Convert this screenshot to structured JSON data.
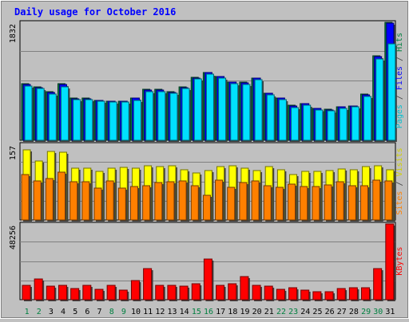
{
  "chart_data": {
    "type": "bar",
    "title": "Daily usage for October 2016",
    "categories": [
      "1",
      "2",
      "3",
      "4",
      "5",
      "6",
      "7",
      "8",
      "9",
      "10",
      "11",
      "12",
      "13",
      "14",
      "15",
      "16",
      "17",
      "18",
      "19",
      "20",
      "21",
      "22",
      "23",
      "24",
      "25",
      "26",
      "27",
      "28",
      "29",
      "30",
      "31"
    ],
    "weekend_days": [
      "1",
      "2",
      "8",
      "9",
      "15",
      "16",
      "22",
      "23",
      "29",
      "30"
    ],
    "panels": [
      {
        "name": "hits-pages-files",
        "ymax_label": "1832",
        "ylim": [
          0,
          1832
        ],
        "series": [
          {
            "name": "Hits",
            "color": "#008040",
            "values": [
              876,
              826,
              749,
              876,
              656,
              656,
              622,
              612,
              606,
              660,
              790,
              791,
              756,
              833,
              976,
              1057,
              993,
              904,
              904,
              970,
              736,
              660,
              539,
              574,
              501,
              481,
              525,
              534,
              715,
              1315,
              1832
            ]
          },
          {
            "name": "Files",
            "color": "#0000ff",
            "values": [
              868,
              820,
              743,
              867,
              648,
              648,
              617,
              605,
              602,
              652,
              780,
              780,
              747,
              823,
              970,
              1050,
              985,
              898,
              896,
              962,
              728,
              653,
              531,
              568,
              496,
              474,
              517,
              528,
              707,
              1304,
              1817
            ]
          },
          {
            "name": "Pages",
            "color": "#00e0ff",
            "values": [
              845,
              805,
              722,
              833,
              634,
              634,
              603,
              589,
              592,
              624,
              755,
              755,
              725,
              799,
              952,
              1031,
              963,
              873,
              866,
              945,
              702,
              629,
              505,
              547,
              474,
              457,
              494,
              517,
              677,
              1260,
              1502
            ]
          }
        ]
      },
      {
        "name": "visits-sites",
        "ymax_label": "157",
        "ylim": [
          0,
          157
        ],
        "series": [
          {
            "name": "Visits",
            "color": "#ffff00",
            "values": [
              146,
              122,
              142,
              141,
              108,
              108,
              101,
              108,
              109,
              108,
              112,
              110,
              112,
              104,
              97,
              102,
              110,
              112,
              108,
              103,
              110,
              104,
              95,
              100,
              101,
              102,
              106,
              104,
              111,
              112,
              104
            ]
          },
          {
            "name": "Sites",
            "color": "#ff8000",
            "values": [
              95,
              81,
              86,
              99,
              79,
              79,
              66,
              81,
              66,
              70,
              71,
              78,
              80,
              81,
              71,
              51,
              82,
              68,
              78,
              81,
              71,
              68,
              75,
              69,
              69,
              73,
              79,
              71,
              71,
              83,
              81
            ]
          }
        ]
      },
      {
        "name": "kbytes",
        "ymax_label": "48256",
        "ylim": [
          0,
          48256
        ],
        "series": [
          {
            "name": "KBytes",
            "color": "#ff0000",
            "values": [
              9148,
              13432,
              8658,
              9148,
              7240,
              8900,
              6640,
              9148,
              6140,
              12100,
              19716,
              9148,
              9148,
              8658,
              10128,
              26090,
              9148,
              10128,
              14900,
              9148,
              8500,
              6640,
              7640,
              6140,
              5140,
              5140,
              7240,
              7640,
              7640,
              19716,
              48256
            ]
          }
        ]
      }
    ]
  },
  "side_labels": {
    "top": [
      {
        "text": "Pages",
        "color": "#00c0d0"
      },
      {
        "text": " / ",
        "color": "#404040"
      },
      {
        "text": "Files",
        "color": "#0000ff"
      },
      {
        "text": " / ",
        "color": "#404040"
      },
      {
        "text": "Hits",
        "color": "#008040"
      }
    ],
    "mid": [
      {
        "text": "Sites",
        "color": "#ff8000"
      },
      {
        "text": " / ",
        "color": "#404040"
      },
      {
        "text": "Visits",
        "color": "#d0d000"
      }
    ],
    "bot": [
      {
        "text": "KBytes",
        "color": "#ff0000"
      }
    ]
  },
  "colors": {
    "background": "#c0c0c0",
    "title": "#0000ff",
    "tick_weekday": "#000000",
    "tick_weekend": "#008040",
    "grid": "#808080"
  }
}
